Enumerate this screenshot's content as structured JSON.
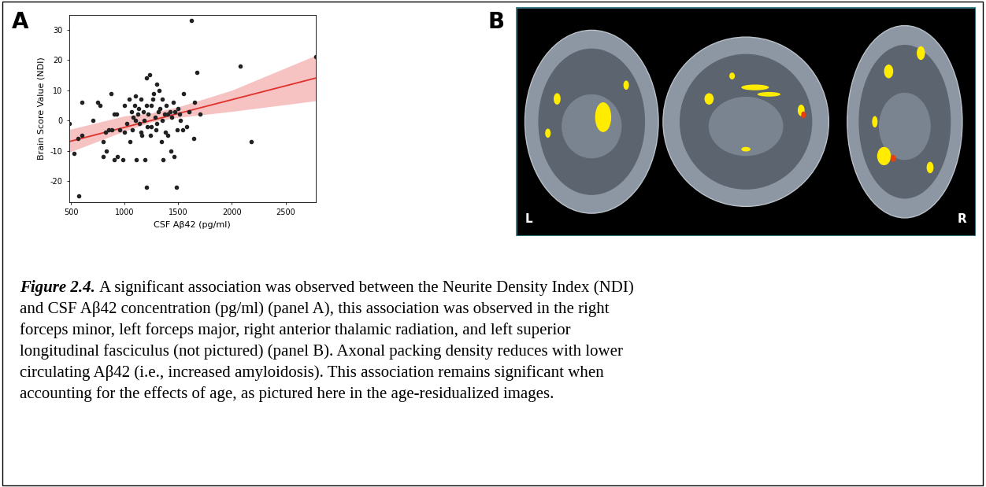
{
  "chart_data": {
    "type": "scatter",
    "x_label": "CSF Aβ42 (pg/ml)",
    "y_label": "Brain Score Value (NDI)",
    "x": [
      480,
      530,
      560,
      570,
      600,
      600,
      700,
      750,
      770,
      800,
      800,
      820,
      830,
      850,
      870,
      880,
      900,
      900,
      920,
      930,
      950,
      980,
      1000,
      1000,
      1020,
      1040,
      1050,
      1060,
      1070,
      1080,
      1090,
      1100,
      1100,
      1110,
      1120,
      1130,
      1140,
      1150,
      1150,
      1160,
      1170,
      1180,
      1190,
      1200,
      1200,
      1200,
      1210,
      1220,
      1230,
      1240,
      1250,
      1250,
      1260,
      1270,
      1280,
      1290,
      1300,
      1300,
      1310,
      1320,
      1330,
      1340,
      1350,
      1350,
      1360,
      1370,
      1380,
      1390,
      1400,
      1400,
      1420,
      1430,
      1440,
      1450,
      1460,
      1470,
      1480,
      1490,
      1500,
      1510,
      1520,
      1540,
      1550,
      1580,
      1600,
      1620,
      1640,
      1650,
      1670,
      1700,
      2080,
      2180,
      2780
    ],
    "values": [
      -1,
      -11,
      -6,
      -25,
      -5,
      6,
      0,
      6,
      5,
      -7,
      -12,
      -4,
      -10,
      -3,
      9,
      -3,
      2,
      -13,
      2,
      -12,
      -3,
      -13,
      5,
      -4,
      -1,
      7,
      -7,
      3,
      -3,
      1,
      5,
      0,
      8,
      -13,
      2,
      4,
      -1,
      -4,
      7,
      -5,
      3,
      0,
      -13,
      -22,
      5,
      14,
      -2,
      2,
      15,
      -5,
      -2,
      5,
      7,
      9,
      1,
      -3,
      12,
      -1,
      3,
      10,
      4,
      -7,
      0,
      7,
      -13,
      2,
      -4,
      5,
      -5,
      2,
      3,
      -10,
      1,
      6,
      -12,
      3,
      -22,
      -3,
      4,
      2,
      0,
      -3,
      9,
      -2,
      3,
      33,
      -6,
      6,
      16,
      2,
      18,
      -7,
      21
    ],
    "color": "#222222",
    "marker": "o",
    "trend_line": {
      "x": [
        480,
        2780
      ],
      "y": [
        -7,
        14
      ],
      "color": "#e0302a"
    },
    "confidence_band": {
      "x": [
        480,
        1000,
        1250,
        1500,
        2000,
        2780
      ],
      "lower": [
        -10.5,
        -3.5,
        -0.5,
        1.0,
        3,
        6.5
      ],
      "upper": [
        -3.0,
        1.5,
        2.5,
        4.5,
        10,
        21.5
      ],
      "color": "#f4b3b3"
    },
    "xlim": [
      480,
      2780
    ],
    "xticks": [
      500,
      1000,
      1500,
      2000,
      2500
    ],
    "ylim": [
      -27,
      35
    ],
    "yticks": [
      -20,
      -10,
      0,
      10,
      20,
      30
    ],
    "grid": false
  },
  "panel_labels": [
    "A",
    "B"
  ],
  "brain_panel": {
    "orientation_labels": [
      "L",
      "R"
    ]
  },
  "caption": {
    "label": "Figure 2.4.",
    "lines": [
      "A significant association was observed between the Neurite Density Index (NDI)",
      "and CSF Aβ42 concentration (pg/ml) (panel A), this association was observed in the right",
      "forceps minor, left forceps major, right anterior thalamic radiation, and left superior",
      "longitudinal fasciculus (not pictured) (panel B). Axonal packing density reduces with lower",
      "circulating Aβ42 (i.e., increased amyloidosis). This association remains significant when",
      "accounting for the effects of age, as pictured here in the age-residualized images."
    ]
  }
}
